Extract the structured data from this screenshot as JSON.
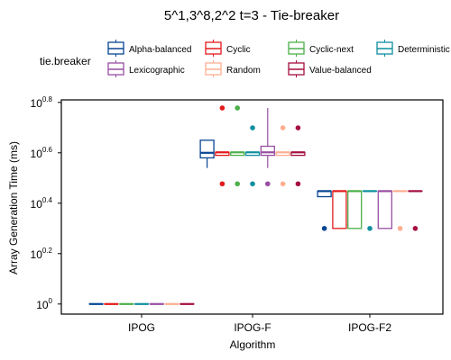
{
  "chart_data": {
    "type": "boxplot",
    "title": "5^1,3^8,2^2 t=3 - Tie-breaker",
    "xlabel": "Algorithm",
    "ylabel": "Array Generation Time (ms)",
    "y_scale": "log10",
    "y_ticks": [
      {
        "base": "10",
        "exp": "0"
      },
      {
        "base": "10",
        "exp": "0.2"
      },
      {
        "base": "10",
        "exp": "0.4"
      },
      {
        "base": "10",
        "exp": "0.6"
      },
      {
        "base": "10",
        "exp": "0.8"
      }
    ],
    "legend": {
      "title": "tie.breaker",
      "placement": "top",
      "entries": [
        {
          "name": "Alpha-balanced",
          "color": "#084594"
        },
        {
          "name": "Cyclic",
          "color": "#e31a1c"
        },
        {
          "name": "Cyclic-next",
          "color": "#4daf4a"
        },
        {
          "name": "Deterministic",
          "color": "#0e8f9f"
        },
        {
          "name": "Lexicographic",
          "color": "#984ea3"
        },
        {
          "name": "Random",
          "color": "#fdae91"
        },
        {
          "name": "Value-balanced",
          "color": "#a50f3f"
        }
      ]
    },
    "categories": [
      "IPOG",
      "IPOG-F",
      "IPOG-F2"
    ],
    "series": [
      {
        "name": "Alpha-balanced",
        "boxes": [
          {
            "min": 0,
            "q1": 0,
            "median": 0,
            "q3": 0,
            "max": 0,
            "outliers": []
          },
          {
            "min": 0.54,
            "q1": 0.58,
            "median": 0.6,
            "q3": 0.65,
            "max": 0.65,
            "outliers": []
          },
          {
            "min": 0.426,
            "q1": 0.426,
            "median": 0.448,
            "q3": 0.448,
            "max": 0.448,
            "outliers": [
              0.3
            ]
          }
        ]
      },
      {
        "name": "Cyclic",
        "boxes": [
          {
            "min": 0,
            "q1": 0,
            "median": 0,
            "q3": 0,
            "max": 0,
            "outliers": []
          },
          {
            "min": 0.59,
            "q1": 0.59,
            "median": 0.602,
            "q3": 0.602,
            "max": 0.602,
            "outliers": [
              0.778,
              0.477
            ]
          },
          {
            "min": 0.3,
            "q1": 0.3,
            "median": 0.448,
            "q3": 0.448,
            "max": 0.448,
            "outliers": []
          }
        ]
      },
      {
        "name": "Cyclic-next",
        "boxes": [
          {
            "min": 0,
            "q1": 0,
            "median": 0,
            "q3": 0,
            "max": 0,
            "outliers": []
          },
          {
            "min": 0.59,
            "q1": 0.59,
            "median": 0.602,
            "q3": 0.602,
            "max": 0.602,
            "outliers": [
              0.778,
              0.477
            ]
          },
          {
            "min": 0.3,
            "q1": 0.3,
            "median": 0.448,
            "q3": 0.448,
            "max": 0.448,
            "outliers": []
          }
        ]
      },
      {
        "name": "Deterministic",
        "boxes": [
          {
            "min": 0,
            "q1": 0,
            "median": 0,
            "q3": 0,
            "max": 0,
            "outliers": []
          },
          {
            "min": 0.59,
            "q1": 0.59,
            "median": 0.602,
            "q3": 0.602,
            "max": 0.602,
            "outliers": [
              0.699,
              0.477
            ]
          },
          {
            "min": 0.448,
            "q1": 0.448,
            "median": 0.448,
            "q3": 0.448,
            "max": 0.448,
            "outliers": [
              0.3
            ]
          }
        ]
      },
      {
        "name": "Lexicographic",
        "boxes": [
          {
            "min": 0,
            "q1": 0,
            "median": 0,
            "q3": 0,
            "max": 0,
            "outliers": []
          },
          {
            "min": 0.54,
            "q1": 0.59,
            "median": 0.602,
            "q3": 0.626,
            "max": 0.778,
            "outliers": [
              0.477
            ]
          },
          {
            "min": 0.3,
            "q1": 0.3,
            "median": 0.448,
            "q3": 0.448,
            "max": 0.448,
            "outliers": []
          }
        ]
      },
      {
        "name": "Random",
        "boxes": [
          {
            "min": 0,
            "q1": 0,
            "median": 0,
            "q3": 0,
            "max": 0,
            "outliers": []
          },
          {
            "min": 0.59,
            "q1": 0.59,
            "median": 0.602,
            "q3": 0.602,
            "max": 0.602,
            "outliers": [
              0.699,
              0.477
            ]
          },
          {
            "min": 0.448,
            "q1": 0.448,
            "median": 0.448,
            "q3": 0.448,
            "max": 0.448,
            "outliers": [
              0.3
            ]
          }
        ]
      },
      {
        "name": "Value-balanced",
        "boxes": [
          {
            "min": 0,
            "q1": 0,
            "median": 0,
            "q3": 0,
            "max": 0,
            "outliers": []
          },
          {
            "min": 0.59,
            "q1": 0.59,
            "median": 0.602,
            "q3": 0.602,
            "max": 0.602,
            "outliers": [
              0.699,
              0.477
            ]
          },
          {
            "min": 0.448,
            "q1": 0.448,
            "median": 0.448,
            "q3": 0.448,
            "max": 0.448,
            "outliers": [
              0.3
            ]
          }
        ]
      }
    ],
    "grid": false
  }
}
